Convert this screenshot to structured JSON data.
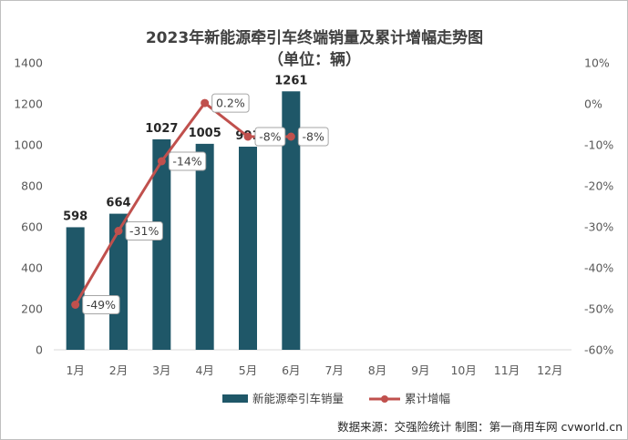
{
  "chart_data": {
    "type": "bar+line",
    "title": "2023年新能源牵引车终端销量及累计增幅走势图",
    "subtitle": "（单位：辆）",
    "categories": [
      "1月",
      "2月",
      "3月",
      "4月",
      "5月",
      "6月",
      "7月",
      "8月",
      "9月",
      "10月",
      "11月",
      "12月"
    ],
    "series": [
      {
        "name": "新能源牵引车销量",
        "type": "bar",
        "axis": "left",
        "color": "#1f5768",
        "values": [
          598,
          664,
          1027,
          1005,
          991,
          1261,
          null,
          null,
          null,
          null,
          null,
          null
        ],
        "labels": [
          "598",
          "664",
          "1027",
          "1005",
          "991",
          "1261"
        ]
      },
      {
        "name": "累计增幅",
        "type": "line",
        "axis": "right",
        "color": "#c0504d",
        "values": [
          -49,
          -31,
          -14,
          0.2,
          -8,
          -8,
          null,
          null,
          null,
          null,
          null,
          null
        ],
        "labels": [
          "-49%",
          "-31%",
          "-14%",
          "0.2%",
          "-8%",
          "-8%"
        ]
      }
    ],
    "y_left": {
      "min": 0,
      "max": 1400,
      "step": 200,
      "ticks": [
        "0",
        "200",
        "400",
        "600",
        "800",
        "1000",
        "1200",
        "1400"
      ]
    },
    "y_right": {
      "min": -60,
      "max": 10,
      "step": 10,
      "ticks": [
        "-60%",
        "-50%",
        "-40%",
        "-30%",
        "-20%",
        "-10%",
        "0%",
        "10%"
      ]
    },
    "grid": false,
    "legend": "bottom"
  },
  "footer": {
    "source": "数据来源：交强险统计  制图：第一商用车网 cvworld.cn"
  }
}
